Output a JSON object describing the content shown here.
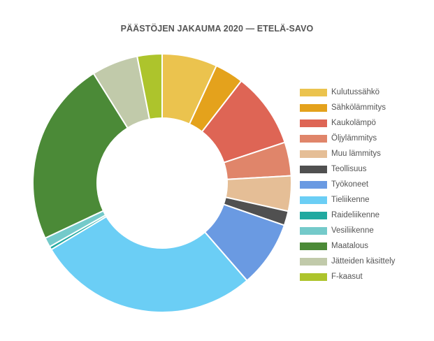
{
  "chart_data": {
    "type": "pie",
    "variant": "donut",
    "title": "PÄÄSTÖJEN JAKAUMA 2020 — ETELÄ-SAVO",
    "legend_position": "right",
    "categories": [
      "Kulutussähkö",
      "Sähkölämmitys",
      "Kaukolämpö",
      "Öljylämmitys",
      "Muu lämmitys",
      "Teollisuus",
      "Työkoneet",
      "Tieliikenne",
      "Raideliikenne",
      "Vesiliikenne",
      "Maatalous",
      "Jätteiden käsittely",
      "F-kaasut"
    ],
    "values": [
      6.9,
      3.6,
      9.4,
      4.2,
      4.4,
      1.8,
      8.3,
      27.8,
      0.4,
      1.2,
      23.1,
      5.8,
      3.1
    ],
    "unit": "%",
    "colors": [
      "#EBC34E",
      "#E4A21C",
      "#DE6555",
      "#E0856A",
      "#E5BE96",
      "#505050",
      "#6A9AE2",
      "#6BCEF5",
      "#21A9A0",
      "#74CACA",
      "#4B8A37",
      "#C1CAAA",
      "#ADC42C"
    ]
  }
}
